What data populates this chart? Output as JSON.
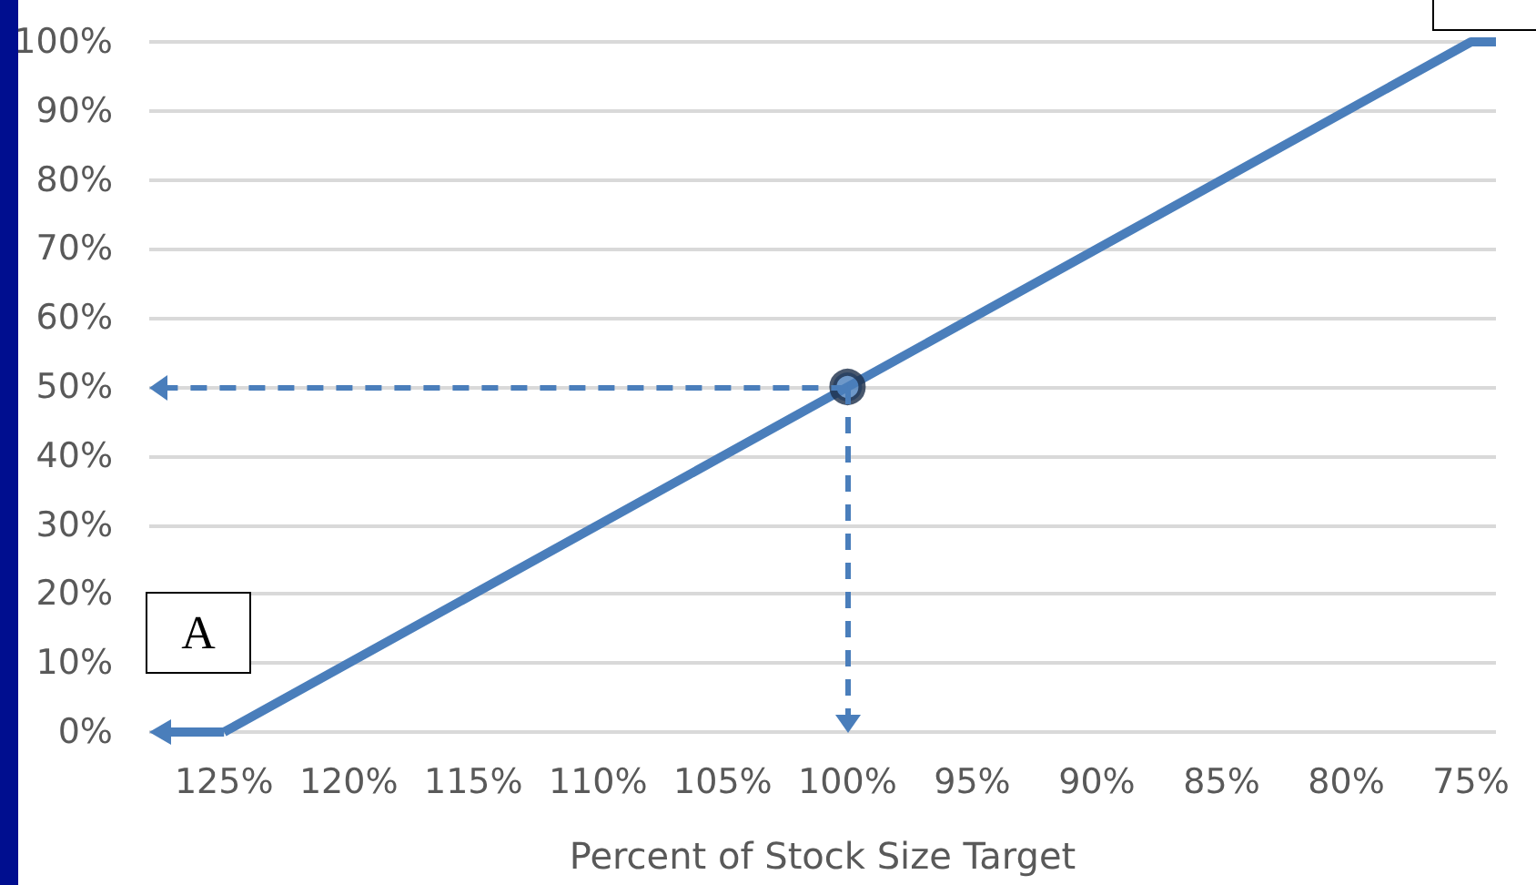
{
  "chart_data": {
    "type": "line",
    "xlabel": "Percent of Stock Size Target",
    "xlim": [
      128,
      74
    ],
    "xticks": [
      {
        "value": 125,
        "label": "125%"
      },
      {
        "value": 120,
        "label": "120%"
      },
      {
        "value": 115,
        "label": "115%"
      },
      {
        "value": 110,
        "label": "110%"
      },
      {
        "value": 105,
        "label": "105%"
      },
      {
        "value": 100,
        "label": "100%"
      },
      {
        "value": 95,
        "label": "95%"
      },
      {
        "value": 90,
        "label": "90%"
      },
      {
        "value": 85,
        "label": "85%"
      },
      {
        "value": 80,
        "label": "80%"
      },
      {
        "value": 75,
        "label": "75%"
      }
    ],
    "ylim": [
      0,
      100
    ],
    "yticks": [
      {
        "value": 0,
        "label": "0%"
      },
      {
        "value": 10,
        "label": "10%"
      },
      {
        "value": 20,
        "label": "20%"
      },
      {
        "value": 30,
        "label": "30%"
      },
      {
        "value": 40,
        "label": "40%"
      },
      {
        "value": 50,
        "label": "50%"
      },
      {
        "value": 60,
        "label": "60%"
      },
      {
        "value": 70,
        "label": "70%"
      },
      {
        "value": 80,
        "label": "80%"
      },
      {
        "value": 90,
        "label": "90%"
      },
      {
        "value": 100,
        "label": "100%"
      }
    ],
    "grid": "y",
    "series": [
      {
        "color": "#4a7ebb",
        "x": [
          125,
          75,
          74
        ],
        "values": [
          0,
          100,
          100
        ],
        "line_style": "solid",
        "marker": "none"
      },
      {
        "type": "scatter",
        "color": "#1c2e4a",
        "x": [
          100
        ],
        "values": [
          50
        ],
        "marker": "circle"
      }
    ],
    "annotations": [
      "A"
    ]
  }
}
